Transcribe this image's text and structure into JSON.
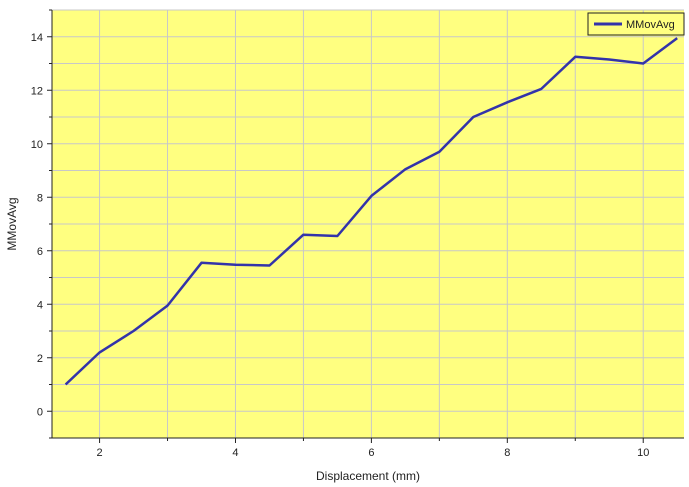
{
  "chart_data": {
    "type": "line",
    "title": "",
    "xlabel": "Displacement (mm)",
    "ylabel": "MMovAvg",
    "xlim": [
      1.3,
      10.6
    ],
    "ylim": [
      -1,
      15
    ],
    "x_ticks": [
      2,
      4,
      6,
      8,
      10
    ],
    "y_ticks": [
      0,
      2,
      4,
      6,
      8,
      10,
      12,
      14
    ],
    "grid": true,
    "legend_position": "top-right",
    "colors": {
      "background": "#ffff80",
      "line": "#3333aa",
      "grid": "#c8c8c8",
      "axis": "#222222"
    },
    "series": [
      {
        "name": "MMovAvg",
        "x": [
          1.5,
          2.0,
          2.5,
          3.0,
          3.5,
          4.0,
          4.5,
          5.0,
          5.5,
          6.0,
          6.5,
          7.0,
          7.5,
          8.0,
          8.5,
          9.0,
          9.5,
          10.0,
          10.5
        ],
        "values": [
          1.0,
          2.2,
          3.0,
          3.95,
          5.55,
          5.48,
          5.45,
          6.6,
          6.55,
          8.05,
          9.05,
          9.7,
          11.0,
          11.55,
          12.05,
          13.25,
          13.15,
          13.0,
          13.95
        ]
      }
    ]
  }
}
